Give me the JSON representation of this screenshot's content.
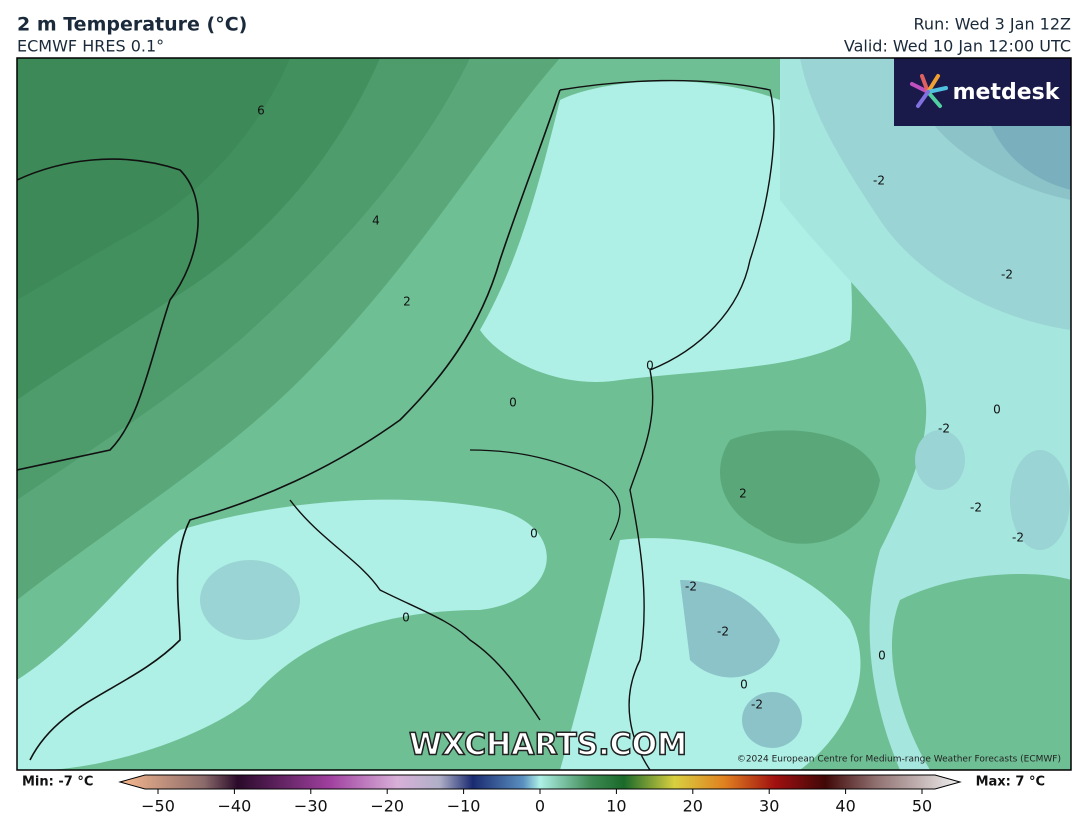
{
  "header": {
    "title": "2 m Temperature (°C)",
    "subtitle": "ECMWF HRES 0.1°",
    "run": "Run: Wed 3 Jan 12Z",
    "valid": "Valid: Wed 10 Jan 12:00 UTC"
  },
  "logo": "metdesk",
  "watermark": "WXCHARTS.COM",
  "copyright": "©2024 European Centre for Medium-range Weather Forecasts (ECMWF)",
  "contour_labels": [
    "6",
    "4",
    "2",
    "0",
    "0",
    "-2",
    "-2",
    "0",
    "-2",
    "2",
    "0",
    "-2",
    "-2",
    "-2",
    "-2",
    "0",
    "0",
    "0",
    "-2"
  ],
  "colorbar": {
    "min_label": "Min: -7 °C",
    "max_label": "Max: 7 °C",
    "ticks": [
      {
        "value": -50,
        "label": "−50"
      },
      {
        "value": -40,
        "label": "−40"
      },
      {
        "value": -30,
        "label": "−30"
      },
      {
        "value": -20,
        "label": "−20"
      },
      {
        "value": -10,
        "label": "−10"
      },
      0,
      10,
      20,
      30,
      40,
      50
    ]
  }
}
